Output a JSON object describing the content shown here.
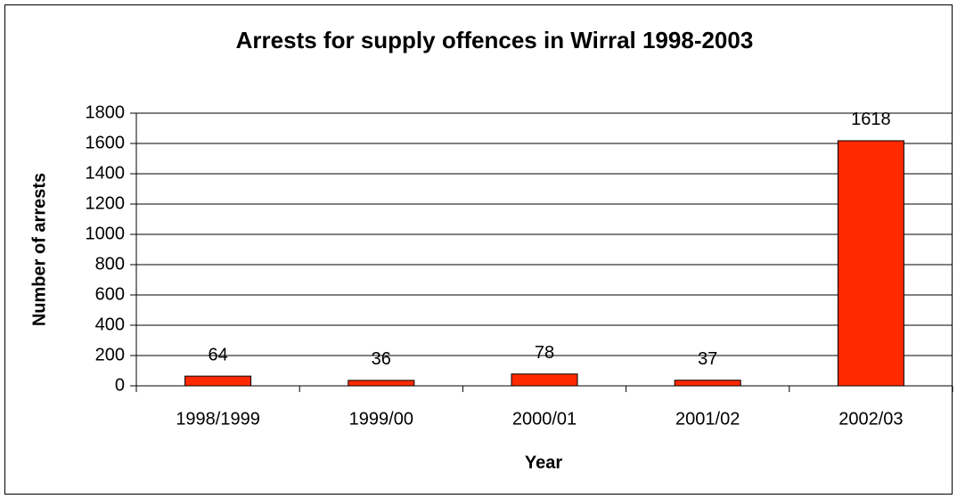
{
  "chart_data": {
    "type": "bar",
    "title": "Arrests for supply offences in Wirral 1998-2003",
    "x_label": "Year",
    "y_label": "Number of arrests",
    "categories": [
      "1998/1999",
      "1999/00",
      "2000/01",
      "2001/02",
      "2002/03"
    ],
    "values": [
      64,
      36,
      78,
      37,
      1618
    ],
    "color": "#ff2a00",
    "ylim": [
      0,
      1800
    ],
    "yticks": [
      0,
      200,
      400,
      600,
      800,
      1000,
      1200,
      1400,
      1600,
      1800
    ],
    "grid": true
  }
}
